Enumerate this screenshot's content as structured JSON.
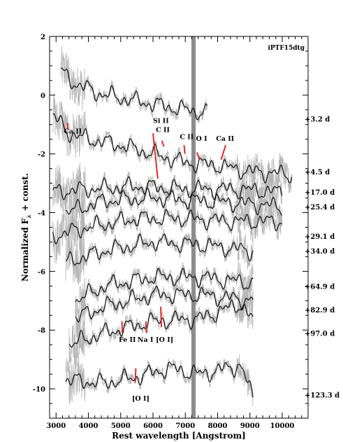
{
  "chart_data": {
    "type": "line",
    "object_name": "iPTF15dtg",
    "xlabel": "Rest wavelength [Angstrom]",
    "ylabel_main": "Normalized F",
    "ylabel_sub": "λ",
    "ylabel_tail": " + const.",
    "xlim": [
      2800,
      10800
    ],
    "ylim": [
      -11.0,
      2.0
    ],
    "xticks": [
      3000,
      4000,
      5000,
      6000,
      7000,
      8000,
      9000,
      10000
    ],
    "yticks": [
      2,
      0,
      -2,
      -4,
      -6,
      -8,
      -10
    ],
    "telluric_band": {
      "x": [
        7190,
        7320
      ],
      "color": "#8c8c8c"
    },
    "series": [
      {
        "phase": "+3.2 d",
        "x_range": [
          3150,
          7680
        ],
        "offset": -0.2,
        "phase_y": -0.8,
        "continuum": [
          [
            3150,
            1.0
          ],
          [
            3600,
            0.6
          ],
          [
            4200,
            0.3
          ],
          [
            5000,
            0.1
          ],
          [
            6000,
            -0.1
          ],
          [
            7000,
            -0.3
          ],
          [
            7680,
            -0.4
          ]
        ]
      },
      {
        "phase": "+4.5 d",
        "x_range": [
          2900,
          10300
        ],
        "offset": -1.3,
        "phase_y": -2.6,
        "continuum": [
          [
            2900,
            0.6
          ],
          [
            3400,
            0.0
          ],
          [
            4000,
            -0.2
          ],
          [
            5000,
            -0.4
          ],
          [
            6000,
            -0.7
          ],
          [
            7000,
            -1.0
          ],
          [
            8000,
            -1.1
          ],
          [
            9000,
            -1.3
          ],
          [
            10300,
            -1.4
          ]
        ]
      },
      {
        "phase": "+17.0 d",
        "x_range": [
          2900,
          10000
        ],
        "offset": -3.3,
        "phase_y": -3.3,
        "continuum": [
          [
            2900,
            0.0
          ],
          [
            4000,
            0.1
          ],
          [
            5500,
            0.2
          ],
          [
            7000,
            0.1
          ],
          [
            8500,
            0.1
          ],
          [
            10000,
            0.0
          ]
        ]
      },
      {
        "phase": "+25.4 d",
        "x_range": [
          3300,
          10000
        ],
        "offset": -3.8,
        "phase_y": -3.8,
        "continuum": [
          [
            3300,
            -0.2
          ],
          [
            4500,
            0.2
          ],
          [
            6000,
            0.3
          ],
          [
            7500,
            0.2
          ],
          [
            9000,
            0.1
          ],
          [
            10000,
            0.0
          ]
        ]
      },
      {
        "phase": "+29.1 d",
        "x_range": [
          2900,
          10000
        ],
        "offset": -4.6,
        "phase_y": -4.8,
        "continuum": [
          [
            2900,
            -0.2
          ],
          [
            4000,
            0.1
          ],
          [
            5500,
            0.4
          ],
          [
            7000,
            0.4
          ],
          [
            8500,
            0.3
          ],
          [
            10000,
            0.3
          ]
        ]
      },
      {
        "phase": "+34.0 d",
        "x_range": [
          3300,
          9100
        ],
        "offset": -5.4,
        "phase_y": -5.3,
        "continuum": [
          [
            3300,
            -0.3
          ],
          [
            4500,
            0.1
          ],
          [
            6000,
            0.4
          ],
          [
            7500,
            0.3
          ],
          [
            9100,
            0.1
          ]
        ]
      },
      {
        "phase": "+64.9 d",
        "x_range": [
          3600,
          9100
        ],
        "offset": -6.4,
        "phase_y": -6.5,
        "continuum": [
          [
            3600,
            -0.6
          ],
          [
            4500,
            -0.1
          ],
          [
            6000,
            0.2
          ],
          [
            7500,
            0.2
          ],
          [
            9100,
            0.0
          ]
        ]
      },
      {
        "phase": "+82.9 d",
        "x_range": [
          3600,
          9100
        ],
        "offset": -7.1,
        "phase_y": -7.3,
        "continuum": [
          [
            3600,
            -0.5
          ],
          [
            4500,
            -0.1
          ],
          [
            6000,
            0.3
          ],
          [
            7500,
            0.3
          ],
          [
            9100,
            0.1
          ]
        ]
      },
      {
        "phase": "+97.0 d",
        "x_range": [
          3400,
          9100
        ],
        "offset": -7.9,
        "phase_y": -8.1,
        "continuum": [
          [
            3400,
            -0.6
          ],
          [
            4500,
            -0.2
          ],
          [
            6000,
            0.2
          ],
          [
            7500,
            0.3
          ],
          [
            8700,
            0.8
          ],
          [
            9100,
            0.2
          ]
        ]
      },
      {
        "phase": "+123.3 d",
        "x_range": [
          3300,
          9100
        ],
        "offset": -9.7,
        "phase_y": -10.2,
        "continuum": [
          [
            3300,
            0.0
          ],
          [
            4500,
            -0.1
          ],
          [
            5500,
            0.1
          ],
          [
            6500,
            0.4
          ],
          [
            7500,
            0.2
          ],
          [
            8700,
            0.5
          ],
          [
            9100,
            -0.6
          ]
        ]
      }
    ],
    "annotations": [
      {
        "label": "Ca II",
        "wavelength": 3350,
        "y": -1.5,
        "text_x": 3240,
        "text_y": -1.3,
        "line": [
          [
            3360,
            -0.95
          ],
          [
            3370,
            -1.15
          ]
        ]
      },
      {
        "label": "Si II",
        "wavelength": 6150,
        "y": -0.9,
        "text_x": 6000,
        "text_y": -0.95,
        "line": [
          [
            6000,
            -1.3
          ],
          [
            6150,
            -2.85
          ]
        ]
      },
      {
        "label": "C II",
        "wavelength": 6300,
        "y": -1.2,
        "text_x": 6090,
        "text_y": -1.25,
        "line": [
          [
            6270,
            -1.55
          ],
          [
            6340,
            -1.75
          ]
        ]
      },
      {
        "label": "C II",
        "wavelength": 7000,
        "y": -1.4,
        "text_x": 6830,
        "text_y": -1.5,
        "line": [
          [
            6960,
            -1.7
          ],
          [
            6990,
            -2.0
          ]
        ]
      },
      {
        "label": "O I",
        "wavelength": 7400,
        "y": -1.5,
        "text_x": 7330,
        "text_y": -1.55,
        "line": [
          [
            7360,
            -1.95
          ],
          [
            7440,
            -2.2
          ]
        ]
      },
      {
        "label": "Ca II",
        "wavelength": 8100,
        "y": -1.5,
        "text_x": 7950,
        "text_y": -1.55,
        "line": [
          [
            8250,
            -1.7
          ],
          [
            8110,
            -2.2
          ]
        ]
      },
      {
        "label": "Fe II",
        "wavelength": 5050,
        "y": -8.1,
        "text_x": 4940,
        "text_y": -8.4,
        "line": [
          [
            5040,
            -7.7
          ],
          [
            5050,
            -8.1
          ]
        ]
      },
      {
        "label": "Na I",
        "wavelength": 5800,
        "y": -8.1,
        "text_x": 5520,
        "text_y": -8.4,
        "line": [
          [
            5780,
            -7.7
          ],
          [
            5800,
            -8.1
          ]
        ]
      },
      {
        "label": "[O I]",
        "wavelength": 6300,
        "y": -8.0,
        "text_x": 6090,
        "text_y": -8.4,
        "line": [
          [
            6240,
            -7.2
          ],
          [
            6260,
            -7.9
          ]
        ]
      },
      {
        "label": "[O I]",
        "wavelength": 5500,
        "y": -10.2,
        "text_x": 5350,
        "text_y": -10.4,
        "line": [
          [
            5470,
            -9.3
          ],
          [
            5450,
            -9.8
          ]
        ]
      }
    ],
    "colors": {
      "spectrum": "#000000",
      "noise": "#b4b4b4",
      "marker": "#e8141b",
      "telluric": "#8c8c8c"
    },
    "grid": false,
    "legend": "none"
  }
}
